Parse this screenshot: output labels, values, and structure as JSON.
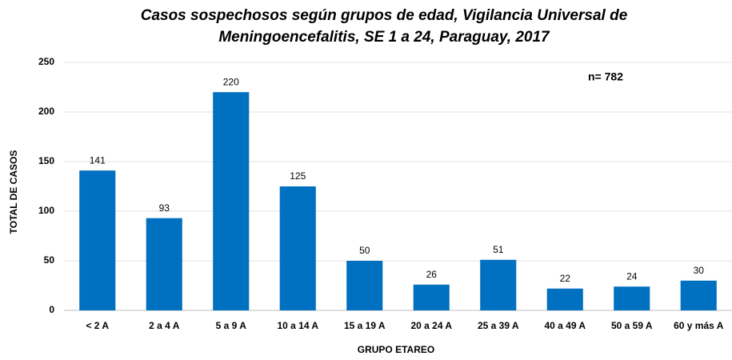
{
  "chart_data": {
    "type": "bar",
    "title": "Casos sospechosos según grupos de edad, Vigilancia Universal de Meningoencefalitis, SE 1 a 24, Paraguay, 2017",
    "annotation": "n= 782",
    "x_label": "GRUPO ETAREO",
    "y_label": "TOTAL DE CASOS",
    "categories": [
      "< 2 A",
      "2 a 4 A",
      "5 a 9 A",
      "10 a 14 A",
      "15 a 19 A",
      "20 a 24 A",
      "25 a 39 A",
      "40 a 49 A",
      "50 a 59 A",
      "60 y más A"
    ],
    "values": [
      141,
      93,
      220,
      125,
      50,
      26,
      51,
      22,
      24,
      30
    ],
    "color": "#0070c0",
    "ylim": [
      0,
      250
    ],
    "yticks": [
      0,
      50,
      100,
      150,
      200,
      250
    ],
    "grid": true
  }
}
